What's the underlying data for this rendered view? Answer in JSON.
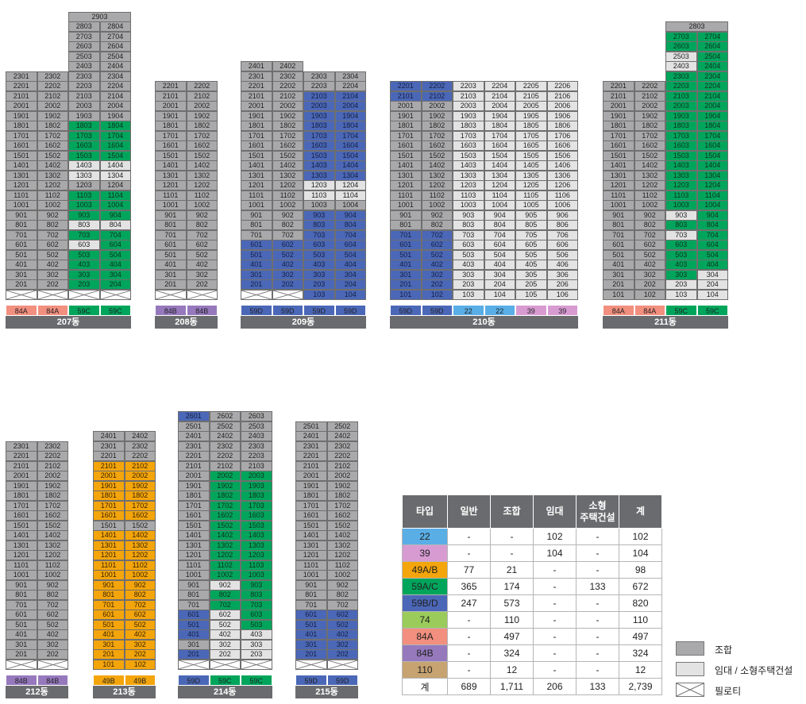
{
  "colors": {
    "조합": "#a9a9ab",
    "임대": "#e3e3e3",
    "59A/C": "#00a55c",
    "59B/D": "#4b67b7",
    "49A/B": "#f4a50b",
    "22": "#5aaee6",
    "39": "#d79bd2",
    "74": "#9bcc5b",
    "84A": "#f28f7f",
    "84B": "#9679bd",
    "110": "#c7a371"
  },
  "buildings": [
    {
      "name": "207동",
      "type_labels": [
        "84A",
        "84A",
        "59C",
        "59C"
      ]
    },
    {
      "name": "208동",
      "type_labels": [
        "84B",
        "84B"
      ]
    },
    {
      "name": "209동",
      "type_labels": [
        "59D",
        "59D",
        "59D",
        "59D"
      ]
    },
    {
      "name": "210동",
      "type_labels": [
        "59D",
        "59D",
        "22",
        "22",
        "39",
        "39"
      ]
    },
    {
      "name": "211동",
      "type_labels": [
        "84A",
        "84A",
        "59C",
        "59C"
      ]
    },
    {
      "name": "212동",
      "type_labels": [
        "84B",
        "84B"
      ]
    },
    {
      "name": "213동",
      "type_labels": [
        "49B",
        "49B"
      ]
    },
    {
      "name": "214동",
      "type_labels": [
        "59D",
        "59C",
        "59C"
      ]
    },
    {
      "name": "215동",
      "type_labels": [
        "59D",
        "59D"
      ]
    }
  ],
  "table": {
    "headers": [
      "타입",
      "일반",
      "조합",
      "임대",
      "소형\n주택건설",
      "계"
    ],
    "rows": [
      {
        "type": "22",
        "일반": "-",
        "조합": "-",
        "임대": "102",
        "소형": "-",
        "계": "102"
      },
      {
        "type": "39",
        "일반": "-",
        "조합": "-",
        "임대": "104",
        "소형": "-",
        "계": "104"
      },
      {
        "type": "49A/B",
        "일반": "77",
        "조합": "21",
        "임대": "-",
        "소형": "-",
        "계": "98"
      },
      {
        "type": "59A/C",
        "일반": "365",
        "조합": "174",
        "임대": "-",
        "소형": "133",
        "계": "672"
      },
      {
        "type": "59B/D",
        "일반": "247",
        "조합": "573",
        "임대": "-",
        "소형": "-",
        "계": "820"
      },
      {
        "type": "74",
        "일반": "-",
        "조합": "110",
        "임대": "-",
        "소형": "-",
        "계": "110"
      },
      {
        "type": "84A",
        "일반": "-",
        "조합": "497",
        "임대": "-",
        "소형": "-",
        "계": "497"
      },
      {
        "type": "84B",
        "일반": "-",
        "조합": "324",
        "임대": "-",
        "소형": "-",
        "계": "324"
      },
      {
        "type": "110",
        "일반": "-",
        "조합": "12",
        "임대": "-",
        "소형": "-",
        "계": "12"
      }
    ],
    "total": {
      "label": "계",
      "일반": "689",
      "조합": "1,711",
      "임대": "206",
      "소형": "133",
      "계": "2,739"
    }
  },
  "legend": [
    {
      "label": "조합",
      "kind": "조합"
    },
    {
      "label": "임대 / 소형주택건설",
      "kind": "임대"
    },
    {
      "label": "필로티",
      "kind": "필로티"
    }
  ]
}
